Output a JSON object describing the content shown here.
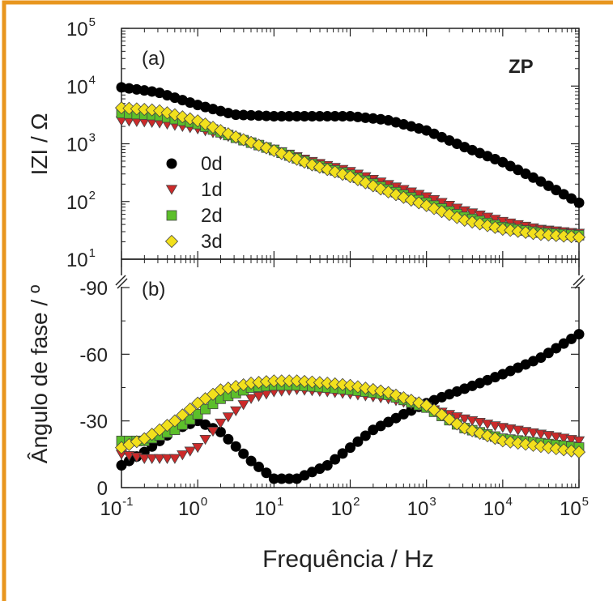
{
  "chart_data": [
    {
      "type": "scatter",
      "panel_label": "(a)",
      "annotation": "ZP",
      "ylabel": "IZI / Ω",
      "xscale": "log",
      "yscale": "log",
      "xlim": [
        0.1,
        100000
      ],
      "ylim": [
        10,
        100000
      ],
      "y_ticks": [
        10,
        100,
        1000,
        10000,
        100000
      ],
      "grid": false,
      "legend": "left, middle of panel (a)",
      "series": [
        {
          "name": "0d",
          "color": "#000000",
          "marker": "circle",
          "x": [
            0.1,
            0.3,
            1,
            3,
            10,
            30,
            100,
            300,
            1000,
            3000,
            10000,
            30000,
            100000
          ],
          "y": [
            9500,
            7800,
            4700,
            3200,
            3000,
            3000,
            3000,
            2600,
            1700,
            900,
            480,
            230,
            95
          ]
        },
        {
          "name": "1d",
          "color": "#cc2a2a",
          "marker": "triangle-down",
          "x": [
            0.1,
            0.3,
            1,
            3,
            10,
            30,
            100,
            300,
            1000,
            3000,
            10000,
            30000,
            100000
          ],
          "y": [
            2500,
            2300,
            1800,
            1250,
            800,
            500,
            330,
            200,
            120,
            70,
            45,
            33,
            28
          ]
        },
        {
          "name": "2d",
          "color": "#5cbf2a",
          "marker": "square",
          "x": [
            0.1,
            0.3,
            1,
            3,
            10,
            30,
            100,
            300,
            1000,
            3000,
            10000,
            30000,
            100000
          ],
          "y": [
            3400,
            3100,
            2200,
            1300,
            780,
            460,
            290,
            165,
            95,
            55,
            36,
            29,
            26
          ]
        },
        {
          "name": "3d",
          "color": "#f2e01c",
          "marker": "diamond",
          "x": [
            0.1,
            0.3,
            1,
            3,
            10,
            30,
            100,
            300,
            1000,
            3000,
            10000,
            30000,
            100000
          ],
          "y": [
            4200,
            3800,
            2500,
            1350,
            760,
            440,
            270,
            150,
            85,
            48,
            33,
            27,
            24
          ]
        }
      ]
    },
    {
      "type": "scatter",
      "panel_label": "(b)",
      "ylabel": "Ângulo de fase / º",
      "xlabel": "Frequência / Hz",
      "xscale": "log",
      "xlim": [
        0.1,
        100000
      ],
      "ylim": [
        0,
        -90
      ],
      "y_ticks": [
        0,
        -30,
        -60,
        -90
      ],
      "x_ticks": [
        0.1,
        1,
        10,
        100,
        1000,
        10000,
        100000
      ],
      "grid": false,
      "series": [
        {
          "name": "0d",
          "color": "#000000",
          "marker": "circle",
          "x": [
            0.1,
            0.2,
            0.5,
            1,
            2,
            5,
            10,
            20,
            50,
            100,
            200,
            500,
            1000,
            2000,
            5000,
            10000,
            30000,
            100000
          ],
          "y": [
            -10,
            -16,
            -26,
            -30,
            -25,
            -12,
            -4,
            -4,
            -10,
            -18,
            -26,
            -33,
            -38,
            -42,
            -47,
            -51,
            -58,
            -69
          ]
        },
        {
          "name": "1d",
          "color": "#cc2a2a",
          "marker": "triangle-down",
          "x": [
            0.1,
            0.2,
            0.5,
            1,
            2,
            5,
            10,
            20,
            50,
            100,
            300,
            1000,
            3000,
            10000,
            100000
          ],
          "y": [
            -15,
            -13,
            -13,
            -18,
            -29,
            -40,
            -43,
            -44,
            -43,
            -42,
            -40,
            -36,
            -31,
            -27,
            -21
          ]
        },
        {
          "name": "2d",
          "color": "#5cbf2a",
          "marker": "square",
          "x": [
            0.1,
            0.2,
            0.5,
            1,
            2,
            5,
            10,
            20,
            50,
            100,
            300,
            1000,
            3000,
            10000,
            100000
          ],
          "y": [
            -21,
            -21,
            -26,
            -33,
            -40,
            -45,
            -46,
            -46,
            -45,
            -44,
            -42,
            -36,
            -27,
            -22,
            -18
          ]
        },
        {
          "name": "3d",
          "color": "#f2e01c",
          "marker": "diamond",
          "x": [
            0.1,
            0.2,
            0.5,
            1,
            2,
            5,
            10,
            20,
            50,
            100,
            300,
            1000,
            3000,
            10000,
            100000
          ],
          "y": [
            -18,
            -22,
            -30,
            -38,
            -44,
            -47,
            -48,
            -48,
            -47,
            -46,
            -43,
            -37,
            -27,
            -21,
            -16
          ]
        }
      ]
    }
  ]
}
